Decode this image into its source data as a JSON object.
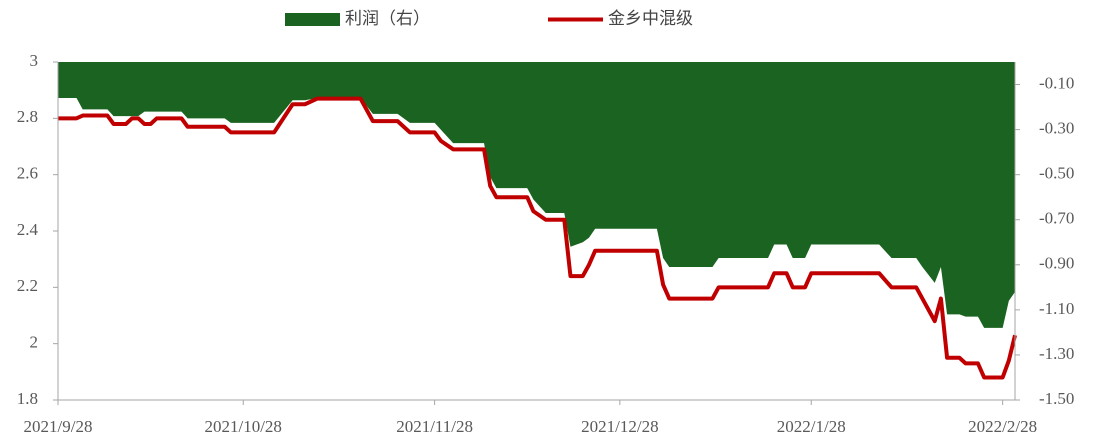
{
  "chart_data": {
    "type": "line",
    "x": [
      "2021/9/28",
      "2021/10/1",
      "2021/10/2",
      "2021/10/6",
      "2021/10/7",
      "2021/10/9",
      "2021/10/10",
      "2021/10/11",
      "2021/10/12",
      "2021/10/13",
      "2021/10/14",
      "2021/10/18",
      "2021/10/19",
      "2021/10/25",
      "2021/10/26",
      "2021/11/2",
      "2021/11/5",
      "2021/11/7",
      "2021/11/9",
      "2021/11/16",
      "2021/11/18",
      "2021/11/22",
      "2021/11/24",
      "2021/11/28",
      "2021/11/29",
      "2021/12/1",
      "2021/12/6",
      "2021/12/7",
      "2021/12/8",
      "2021/12/13",
      "2021/12/14",
      "2021/12/16",
      "2021/12/19",
      "2021/12/20",
      "2021/12/22",
      "2021/12/23",
      "2021/12/24",
      "2022/1/3",
      "2022/1/4",
      "2022/1/5",
      "2022/1/12",
      "2022/1/13",
      "2022/1/21",
      "2022/1/22",
      "2022/1/24",
      "2022/1/25",
      "2022/1/27",
      "2022/1/28",
      "2022/2/8",
      "2022/2/10",
      "2022/2/14",
      "2022/2/15",
      "2022/2/17",
      "2022/2/18",
      "2022/2/19",
      "2022/2/21",
      "2022/2/22",
      "2022/2/24",
      "2022/2/25",
      "2022/2/28",
      "2022/3/1",
      "2022/3/2"
    ],
    "series": [
      {
        "name": "利润（右）",
        "color": "#1b6320",
        "kind": "area",
        "axis": "y2",
        "values": [
          -0.16,
          -0.16,
          -0.21,
          -0.21,
          -0.24,
          -0.24,
          -0.24,
          -0.24,
          -0.22,
          -0.22,
          -0.22,
          -0.22,
          -0.25,
          -0.25,
          -0.27,
          -0.27,
          -0.17,
          -0.17,
          -0.16,
          -0.16,
          -0.23,
          -0.23,
          -0.27,
          -0.27,
          -0.3,
          -0.36,
          -0.36,
          -0.51,
          -0.56,
          -0.56,
          -0.61,
          -0.67,
          -0.67,
          -0.82,
          -0.8,
          -0.78,
          -0.74,
          -0.74,
          -0.87,
          -0.91,
          -0.91,
          -0.87,
          -0.87,
          -0.81,
          -0.81,
          -0.87,
          -0.87,
          -0.81,
          -0.81,
          -0.87,
          -0.87,
          -0.91,
          -0.98,
          -0.91,
          -1.12,
          -1.12,
          -1.13,
          -1.13,
          -1.18,
          -1.18,
          -1.06,
          -1.02
        ]
      },
      {
        "name": "金乡中混级",
        "color": "#c00000",
        "kind": "line",
        "values": [
          2.8,
          2.8,
          2.81,
          2.81,
          2.78,
          2.78,
          2.8,
          2.8,
          2.78,
          2.78,
          2.8,
          2.8,
          2.77,
          2.77,
          2.75,
          2.75,
          2.85,
          2.85,
          2.87,
          2.87,
          2.79,
          2.79,
          2.75,
          2.75,
          2.72,
          2.69,
          2.69,
          2.56,
          2.52,
          2.52,
          2.47,
          2.44,
          2.44,
          2.24,
          2.24,
          2.28,
          2.33,
          2.33,
          2.21,
          2.16,
          2.16,
          2.2,
          2.2,
          2.25,
          2.25,
          2.2,
          2.2,
          2.25,
          2.25,
          2.2,
          2.2,
          2.16,
          2.08,
          2.16,
          1.95,
          1.95,
          1.93,
          1.93,
          1.88,
          1.88,
          1.94,
          2.03
        ]
      }
    ],
    "xlim": [
      "2021/9/28",
      "2022/3/2"
    ],
    "xticks": [
      "2021/9/28",
      "2021/10/28",
      "2021/11/28",
      "2021/12/28",
      "2022/1/28",
      "2022/2/28"
    ],
    "ylim": [
      1.8,
      3
    ],
    "yticks": [
      {
        "value": 1.8,
        "label": "1.8"
      },
      2,
      2.2,
      2.4,
      2.6,
      2.8,
      3
    ],
    "y2lim": [
      -1.5,
      0
    ],
    "y2ticks": [
      {
        "value": -1.5,
        "label": "-1.50"
      },
      {
        "value": -1.3,
        "label": "-1.30"
      },
      {
        "value": -1.1,
        "label": "-1.10"
      },
      {
        "value": -0.9,
        "label": "-0.90"
      },
      {
        "value": -0.7,
        "label": "-0.70"
      },
      {
        "value": -0.5,
        "label": "-0.50"
      },
      {
        "value": -0.3,
        "label": "-0.30"
      },
      {
        "value": -0.1,
        "label": "-0.10"
      }
    ],
    "legend": "top",
    "grid": false
  }
}
